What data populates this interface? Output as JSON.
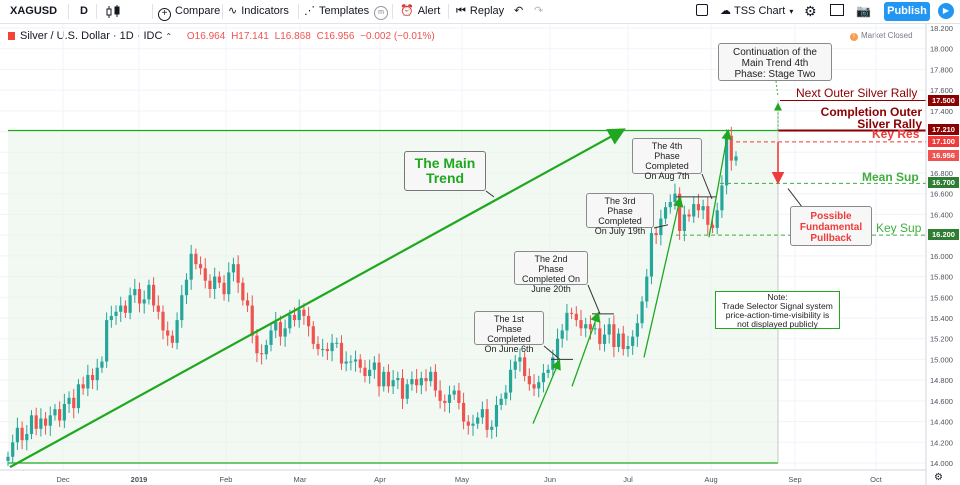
{
  "toolbar": {
    "symbol": "XAGUSD",
    "interval": "D",
    "compare": "Compare",
    "indicators": "Indicators",
    "templates": "Templates",
    "alert": "Alert",
    "replay": "Replay",
    "layout_name": "TSS Chart",
    "publish": "Publish"
  },
  "legend": {
    "title": "Silver / U.S. Dollar · 1D · IDC",
    "open": "O16.964",
    "high": "H17.141",
    "low": "L16.868",
    "close": "C16.956",
    "change": "−0.002 (−0.01%)"
  },
  "market_status": "Market Closed",
  "colors": {
    "up": "#26a69a",
    "down": "#ef5350",
    "trend": "#1fa81f",
    "resistance": "#8b0000"
  },
  "chart_data": {
    "type": "candlestick",
    "symbol": "XAGUSD",
    "ylim": [
      13.95,
      18.2
    ],
    "y_ticks": [
      14.0,
      14.2,
      14.4,
      14.6,
      14.8,
      15.0,
      15.2,
      15.4,
      15.6,
      15.8,
      16.0,
      16.2,
      16.4,
      16.6,
      16.8,
      17.0,
      17.2,
      17.4,
      17.6,
      17.8,
      18.0,
      18.2
    ],
    "x_ticks": [
      "Dec",
      "2019",
      "Feb",
      "Mar",
      "Apr",
      "May",
      "Jun",
      "Jul",
      "Aug",
      "Sep",
      "Oct"
    ],
    "closes": [
      14.06,
      14.2,
      14.34,
      14.22,
      14.28,
      14.46,
      14.33,
      14.43,
      14.36,
      14.46,
      14.52,
      14.41,
      14.57,
      14.63,
      14.53,
      14.76,
      14.72,
      14.85,
      14.8,
      14.92,
      14.98,
      15.38,
      15.42,
      15.46,
      15.52,
      15.45,
      15.62,
      15.68,
      15.54,
      15.58,
      15.72,
      15.52,
      15.46,
      15.28,
      15.23,
      15.16,
      15.38,
      15.62,
      15.77,
      16.02,
      15.92,
      15.88,
      15.76,
      15.68,
      15.8,
      15.74,
      15.63,
      15.84,
      15.92,
      15.74,
      15.57,
      15.52,
      15.23,
      15.06,
      15.05,
      15.14,
      15.28,
      15.36,
      15.22,
      15.3,
      15.43,
      15.38,
      15.48,
      15.42,
      15.32,
      15.15,
      15.1,
      15.1,
      15.08,
      15.16,
      15.16,
      14.96,
      14.98,
      14.98,
      15.0,
      14.92,
      14.84,
      14.9,
      14.97,
      14.74,
      14.88,
      14.74,
      14.8,
      14.82,
      14.62,
      14.76,
      14.81,
      14.75,
      14.82,
      14.79,
      14.88,
      14.7,
      14.6,
      14.58,
      14.66,
      14.7,
      14.58,
      14.4,
      14.36,
      14.38,
      14.44,
      14.52,
      14.32,
      14.35,
      14.56,
      14.62,
      14.68,
      14.9,
      14.98,
      15.02,
      14.84,
      14.76,
      14.72,
      14.78,
      14.87,
      14.9,
      15.02,
      15.2,
      15.28,
      15.45,
      15.44,
      15.38,
      15.3,
      15.34,
      15.29,
      15.3,
      15.15,
      15.24,
      15.34,
      15.12,
      15.25,
      15.1,
      15.13,
      15.22,
      15.35,
      15.56,
      15.8,
      16.22,
      16.2,
      16.36,
      16.47,
      16.52,
      16.6,
      16.24,
      16.4,
      16.38,
      16.5,
      16.44,
      16.48,
      16.3,
      16.27,
      16.44,
      16.68,
      17.16,
      16.92,
      16.96
    ],
    "trend_line": {
      "label": "The Main Trend",
      "from_price": 13.96,
      "to_price": 17.21
    },
    "levels": [
      {
        "label": "Next Outer Silver Rally",
        "price": 17.5,
        "tag": "17.500",
        "color": "#8b0000"
      },
      {
        "label": "Completion Outer Silver Rally",
        "price": 17.21,
        "tag": "17.210",
        "color": "#8b0000"
      },
      {
        "label": "Key Res",
        "price": 17.1,
        "tag": "17.100",
        "color": "#ef3b3b"
      },
      {
        "label": "Mean Sup",
        "price": 16.7,
        "tag": "16.700",
        "color": "#3fae3f"
      },
      {
        "label": "Key Sup",
        "price": 16.2,
        "tag": "16.200",
        "color": "#3fae3f"
      }
    ],
    "base_level": 14.0,
    "last_price_tag": "16.956",
    "phases": [
      {
        "label": "The 1st Phase Completed On June 6th",
        "price": 15.0
      },
      {
        "label": "The 2nd Phase Completed On June 20th",
        "price": 15.44
      },
      {
        "label": "The 3rd Phase Completed On July 19th",
        "price": 16.57
      },
      {
        "label": "The 4th Phase Completed On Aug 7th",
        "price": 17.21
      }
    ],
    "annotations": {
      "continuation": "Continuation of the Main Trend 4th Phase: Stage Two",
      "pullback": "Possible Fundamental Pullback",
      "note_title": "Note:",
      "note_body": "Trade Selector Signal system price-action-time-visibility is not displayed publicly"
    }
  }
}
